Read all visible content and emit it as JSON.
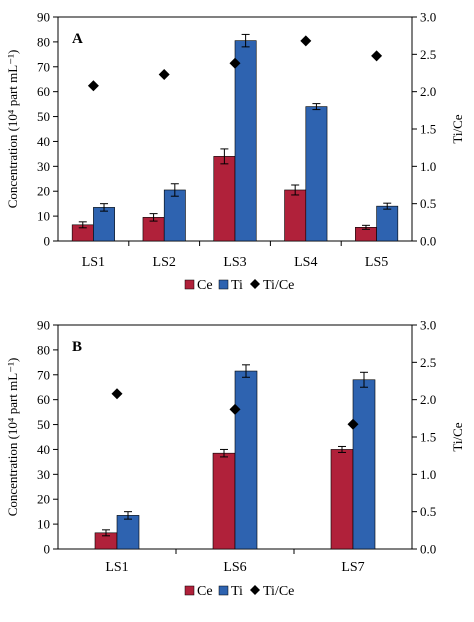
{
  "colors": {
    "ce": "#b0213a",
    "ti": "#2e63b0",
    "ratio": "#000000",
    "frame": "#000000"
  },
  "chart_data": [
    {
      "type": "bar",
      "panel_label": "A",
      "categories": [
        "LS1",
        "LS2",
        "LS3",
        "LS4",
        "LS5"
      ],
      "series": [
        {
          "name": "Ce",
          "axis": "left",
          "values": [
            6.5,
            9.5,
            34,
            20.5,
            5.5
          ],
          "errors": [
            1.2,
            1.5,
            3.0,
            2.0,
            0.8
          ]
        },
        {
          "name": "Ti",
          "axis": "left",
          "values": [
            13.5,
            20.5,
            80.5,
            54,
            14
          ],
          "errors": [
            1.5,
            2.5,
            2.5,
            1.2,
            1.2
          ]
        },
        {
          "name": "Ti/Ce",
          "axis": "right",
          "type": "scatter",
          "marker": "diamond",
          "values": [
            2.08,
            2.23,
            2.38,
            2.68,
            2.48
          ]
        }
      ],
      "ylabel": "Concentration (10⁴ part mL⁻¹)",
      "ylim": [
        0,
        90
      ],
      "yticks": [
        "0",
        "10",
        "20",
        "30",
        "40",
        "50",
        "60",
        "70",
        "80",
        "90"
      ],
      "y2label": "Ti/Ce",
      "y2lim": [
        0,
        3
      ],
      "y2ticks": [
        "0.0",
        "0.5",
        "1.0",
        "1.5",
        "2.0",
        "2.5",
        "3.0"
      ],
      "legend": [
        "Ce",
        "Ti",
        "Ti/Ce"
      ],
      "legend_position": "bottom",
      "grid": false
    },
    {
      "type": "bar",
      "panel_label": "B",
      "categories": [
        "LS1",
        "LS6",
        "LS7"
      ],
      "series": [
        {
          "name": "Ce",
          "axis": "left",
          "values": [
            6.5,
            38.5,
            40
          ],
          "errors": [
            1.2,
            1.5,
            1.2
          ]
        },
        {
          "name": "Ti",
          "axis": "left",
          "values": [
            13.5,
            71.5,
            68
          ],
          "errors": [
            1.5,
            2.5,
            3.0
          ]
        },
        {
          "name": "Ti/Ce",
          "axis": "right",
          "type": "scatter",
          "marker": "diamond",
          "values": [
            2.08,
            1.87,
            1.67
          ]
        }
      ],
      "ylabel": "Concentration (10⁴ part mL⁻¹)",
      "ylim": [
        0,
        90
      ],
      "yticks": [
        "0",
        "10",
        "20",
        "30",
        "40",
        "50",
        "60",
        "70",
        "80",
        "90"
      ],
      "y2label": "Ti/Ce",
      "y2lim": [
        0,
        3
      ],
      "y2ticks": [
        "0.0",
        "0.5",
        "1.0",
        "1.5",
        "2.0",
        "2.5",
        "3.0"
      ],
      "legend": [
        "Ce",
        "Ti",
        "Ti/Ce"
      ],
      "legend_position": "bottom",
      "grid": false
    }
  ]
}
